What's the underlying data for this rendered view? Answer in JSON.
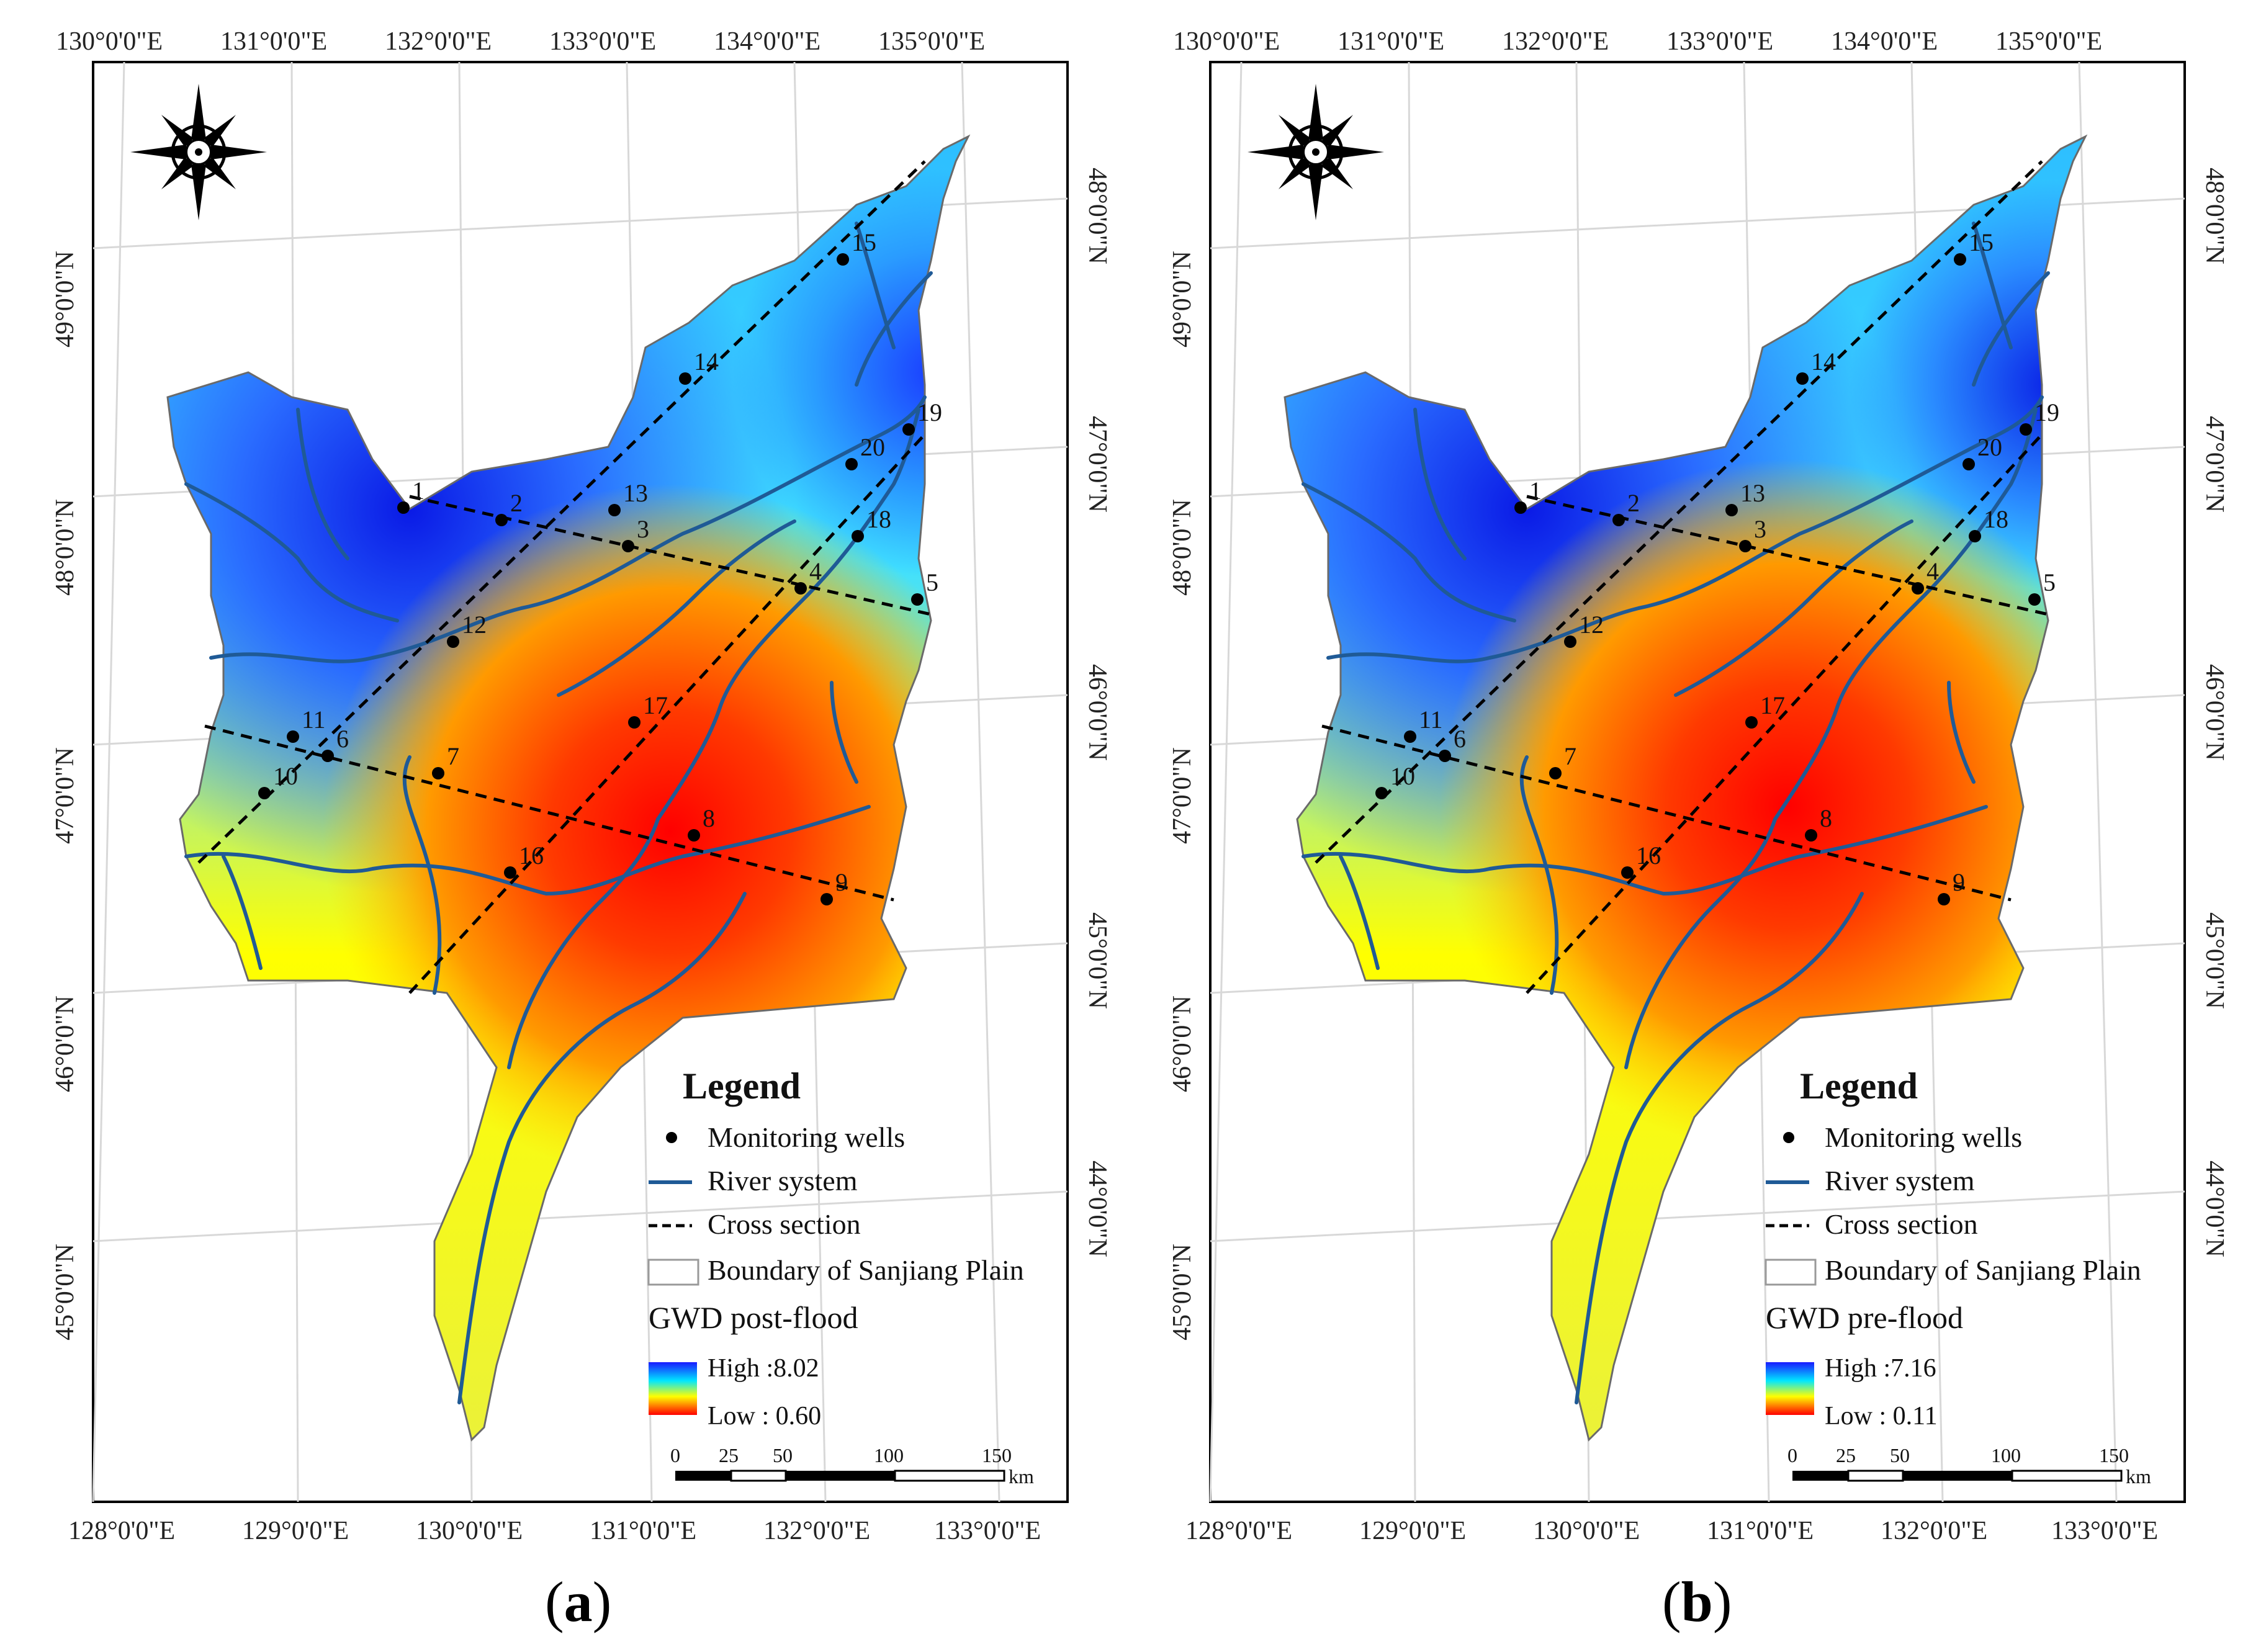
{
  "panels": [
    {
      "id": "a",
      "panel_label": "a",
      "top_lon_labels": [
        "130°0'0\"E",
        "131°0'0\"E",
        "132°0'0\"E",
        "133°0'0\"E",
        "134°0'0\"E",
        "135°0'0\"E"
      ],
      "bottom_lon_labels": [
        "128°0'0\"E",
        "129°0'0\"E",
        "130°0'0\"E",
        "131°0'0\"E",
        "132°0'0\"E",
        "133°0'0\"E"
      ],
      "left_lat_labels": [
        "49°0'0\"N",
        "48°0'0\"N",
        "47°0'0\"N",
        "46°0'0\"N",
        "45°0'0\"N"
      ],
      "right_lat_labels": [
        "48°0'0\"N",
        "47°0'0\"N",
        "46°0'0\"N",
        "45°0'0\"N",
        "44°0'0\"N"
      ],
      "legend": {
        "title": "Legend",
        "wells": "Monitoring wells",
        "river": "River system",
        "cross": "Cross section",
        "boundary": "Boundary of Sanjiang Plain",
        "gwd_label": "GWD post-flood",
        "high": "High :8.02",
        "low": "Low : 0.60",
        "scale_ticks": [
          "0",
          "25",
          "50",
          "100",
          "150"
        ],
        "scale_unit": "km"
      },
      "wells": [
        "1",
        "2",
        "3",
        "4",
        "5",
        "6",
        "7",
        "8",
        "9",
        "10",
        "11",
        "12",
        "13",
        "14",
        "15",
        "16",
        "17",
        "18",
        "19",
        "20"
      ]
    },
    {
      "id": "b",
      "panel_label": "b",
      "top_lon_labels": [
        "130°0'0\"E",
        "131°0'0\"E",
        "132°0'0\"E",
        "133°0'0\"E",
        "134°0'0\"E",
        "135°0'0\"E"
      ],
      "bottom_lon_labels": [
        "128°0'0\"E",
        "129°0'0\"E",
        "130°0'0\"E",
        "131°0'0\"E",
        "132°0'0\"E",
        "133°0'0\"E"
      ],
      "left_lat_labels": [
        "49°0'0\"N",
        "48°0'0\"N",
        "47°0'0\"N",
        "46°0'0\"N",
        "45°0'0\"N"
      ],
      "right_lat_labels": [
        "48°0'0\"N",
        "47°0'0\"N",
        "46°0'0\"N",
        "45°0'0\"N",
        "44°0'0\"N"
      ],
      "legend": {
        "title": "Legend",
        "wells": "Monitoring wells",
        "river": "River system",
        "cross": "Cross section",
        "boundary": "Boundary of Sanjiang Plain",
        "gwd_label": "GWD pre-flood",
        "high": "High :7.16",
        "low": "Low : 0.11",
        "scale_ticks": [
          "0",
          "25",
          "50",
          "100",
          "150"
        ],
        "scale_unit": "km"
      },
      "wells": [
        "1",
        "2",
        "3",
        "4",
        "5",
        "6",
        "7",
        "8",
        "9",
        "10",
        "11",
        "12",
        "13",
        "14",
        "15",
        "16",
        "17",
        "18",
        "19",
        "20"
      ]
    }
  ],
  "colors": {
    "high": "#1a1aff",
    "mid_high": "#00e6ff",
    "mid": "#ffff00",
    "low": "#ff0000",
    "river": "#1f5a96"
  }
}
